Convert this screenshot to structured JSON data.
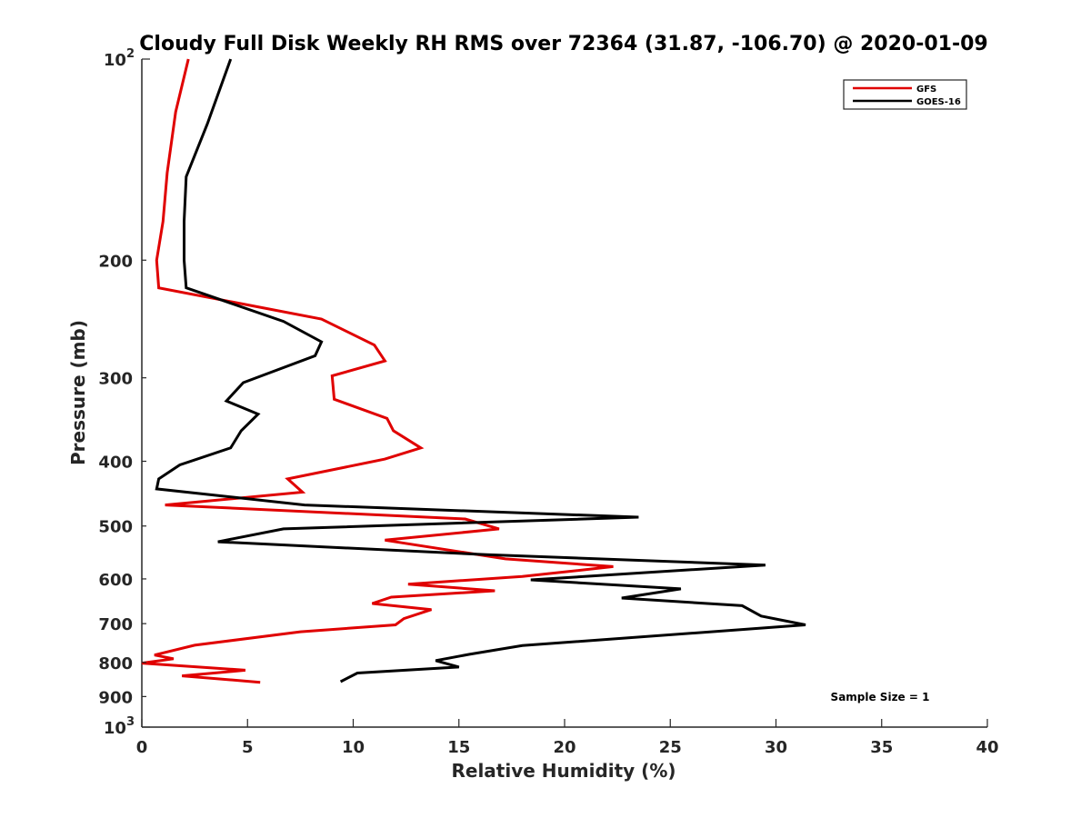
{
  "chart_data": {
    "type": "line",
    "title": "Cloudy Full Disk Weekly RH RMS over 72364 (31.87, -106.70) @ 2020-01-09",
    "xlabel": "Relative Humidity (%)",
    "ylabel": "Pressure (mb)",
    "xlim": [
      0,
      40
    ],
    "ylim": [
      100,
      1000
    ],
    "y_scale": "log",
    "y_reversed": true,
    "grid": false,
    "legend_position": "top-right",
    "x_ticks": [
      {
        "value": 0,
        "label": "0"
      },
      {
        "value": 5,
        "label": "5"
      },
      {
        "value": 10,
        "label": "10"
      },
      {
        "value": 15,
        "label": "15"
      },
      {
        "value": 20,
        "label": "20"
      },
      {
        "value": 25,
        "label": "25"
      },
      {
        "value": 30,
        "label": "30"
      },
      {
        "value": 35,
        "label": "35"
      },
      {
        "value": 40,
        "label": "40"
      }
    ],
    "y_ticks": [
      {
        "value": 100,
        "base": "10",
        "exp": "2"
      },
      {
        "value": 200,
        "label": "200"
      },
      {
        "value": 300,
        "label": "300"
      },
      {
        "value": 400,
        "label": "400"
      },
      {
        "value": 500,
        "label": "500"
      },
      {
        "value": 600,
        "label": "600"
      },
      {
        "value": 700,
        "label": "700"
      },
      {
        "value": 800,
        "label": "800"
      },
      {
        "value": 900,
        "label": "900"
      },
      {
        "value": 1000,
        "base": "10",
        "exp": "3"
      }
    ],
    "annotation": "Sample Size = 1",
    "series": [
      {
        "name": "GFS",
        "color": "#e00000",
        "points": [
          [
            2.2,
            100
          ],
          [
            1.6,
            120
          ],
          [
            1.2,
            148
          ],
          [
            1.0,
            175
          ],
          [
            0.7,
            200
          ],
          [
            0.8,
            220
          ],
          [
            8.5,
            245
          ],
          [
            11.0,
            268
          ],
          [
            11.5,
            283
          ],
          [
            9.0,
            298
          ],
          [
            9.1,
            323
          ],
          [
            11.6,
            345
          ],
          [
            11.9,
            360
          ],
          [
            13.2,
            382
          ],
          [
            11.5,
            397
          ],
          [
            6.9,
            425
          ],
          [
            7.6,
            445
          ],
          [
            1.1,
            465
          ],
          [
            15.3,
            488
          ],
          [
            16.9,
            505
          ],
          [
            11.5,
            525
          ],
          [
            17.2,
            560
          ],
          [
            22.3,
            575
          ],
          [
            18.0,
            595
          ],
          [
            12.6,
            611
          ],
          [
            16.7,
            625
          ],
          [
            11.8,
            639
          ],
          [
            10.9,
            653
          ],
          [
            13.7,
            667
          ],
          [
            12.4,
            688
          ],
          [
            12.0,
            703
          ],
          [
            7.5,
            720
          ],
          [
            2.5,
            754
          ],
          [
            0.6,
            780
          ],
          [
            1.5,
            790
          ],
          [
            0.0,
            802
          ],
          [
            4.9,
            822
          ],
          [
            1.9,
            838
          ],
          [
            5.6,
            857
          ]
        ]
      },
      {
        "name": "GOES-16",
        "color": "#000000",
        "points": [
          [
            4.2,
            100
          ],
          [
            3.1,
            125
          ],
          [
            2.1,
            150
          ],
          [
            2.0,
            175
          ],
          [
            2.0,
            200
          ],
          [
            2.1,
            220
          ],
          [
            6.7,
            247
          ],
          [
            8.5,
            265
          ],
          [
            8.2,
            278
          ],
          [
            4.8,
            305
          ],
          [
            4.0,
            325
          ],
          [
            5.5,
            340
          ],
          [
            4.7,
            360
          ],
          [
            4.2,
            382
          ],
          [
            1.8,
            405
          ],
          [
            0.8,
            425
          ],
          [
            0.7,
            440
          ],
          [
            7.7,
            465
          ],
          [
            23.5,
            485
          ],
          [
            6.7,
            505
          ],
          [
            3.6,
            528
          ],
          [
            16.3,
            552
          ],
          [
            29.5,
            572
          ],
          [
            18.4,
            602
          ],
          [
            25.5,
            621
          ],
          [
            22.7,
            641
          ],
          [
            28.4,
            658
          ],
          [
            29.3,
            682
          ],
          [
            31.4,
            703
          ],
          [
            18.0,
            755
          ],
          [
            15.5,
            778
          ],
          [
            13.9,
            795
          ],
          [
            15.0,
            813
          ],
          [
            10.2,
            830
          ],
          [
            9.4,
            855
          ]
        ]
      }
    ]
  }
}
